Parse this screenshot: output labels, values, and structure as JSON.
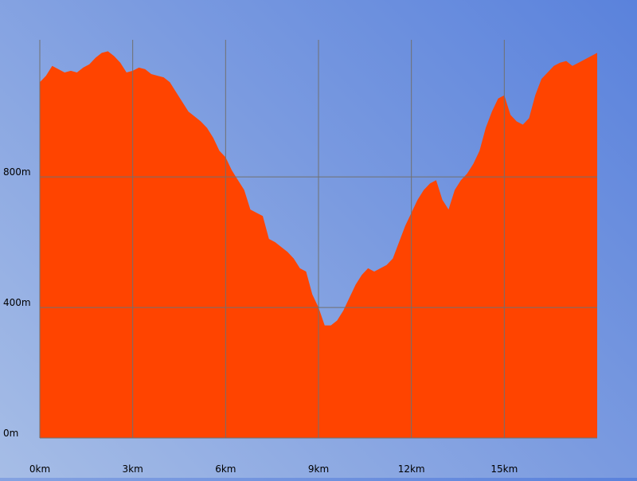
{
  "chart_data": {
    "type": "area",
    "title": "",
    "xlabel": "",
    "ylabel": "",
    "x_unit": "km",
    "y_unit": "m",
    "xlim": [
      0,
      18
    ],
    "ylim": [
      0,
      1220
    ],
    "x_ticks": [
      0,
      3,
      6,
      9,
      12,
      15
    ],
    "x_tick_labels": [
      "0km",
      "3km",
      "6km",
      "9km",
      "12km",
      "15km"
    ],
    "y_ticks": [
      0,
      400,
      800
    ],
    "y_tick_labels": [
      "0m",
      "400m",
      "800m"
    ],
    "grid": true,
    "colors": {
      "fill": "#ff4400",
      "grid": "#707070"
    },
    "series": [
      {
        "x": [
          0,
          0.2,
          0.4,
          0.6,
          0.8,
          1.0,
          1.2,
          1.4,
          1.6,
          1.8,
          2.0,
          2.2,
          2.4,
          2.6,
          2.8,
          3.0,
          3.2,
          3.4,
          3.6,
          3.8,
          4.0,
          4.2,
          4.4,
          4.6,
          4.8,
          5.0,
          5.2,
          5.4,
          5.6,
          5.8,
          6.0,
          6.2,
          6.4,
          6.6,
          6.8,
          7.0,
          7.2,
          7.4,
          7.6,
          7.8,
          8.0,
          8.2,
          8.4,
          8.6,
          8.8,
          9.0,
          9.2,
          9.4,
          9.6,
          9.8,
          10.0,
          10.2,
          10.4,
          10.6,
          10.8,
          11.0,
          11.2,
          11.4,
          11.6,
          11.8,
          12.0,
          12.2,
          12.4,
          12.6,
          12.8,
          13.0,
          13.2,
          13.4,
          13.6,
          13.8,
          14.0,
          14.2,
          14.4,
          14.6,
          14.8,
          15.0,
          15.2,
          15.4,
          15.6,
          15.8,
          16.0,
          16.2,
          16.4,
          16.6,
          16.8,
          17.0,
          17.2,
          17.4,
          17.6,
          17.8,
          18.0
        ],
        "y": [
          1090,
          1110,
          1140,
          1130,
          1120,
          1125,
          1120,
          1135,
          1145,
          1165,
          1180,
          1185,
          1170,
          1150,
          1120,
          1125,
          1135,
          1130,
          1115,
          1110,
          1105,
          1090,
          1060,
          1030,
          1000,
          985,
          970,
          950,
          920,
          880,
          860,
          820,
          790,
          760,
          700,
          690,
          680,
          610,
          600,
          585,
          570,
          550,
          520,
          510,
          440,
          400,
          345,
          345,
          360,
          390,
          430,
          470,
          500,
          520,
          510,
          520,
          530,
          550,
          600,
          650,
          690,
          730,
          760,
          780,
          790,
          730,
          700,
          760,
          790,
          810,
          840,
          880,
          950,
          1000,
          1040,
          1050,
          990,
          970,
          960,
          980,
          1050,
          1100,
          1120,
          1140,
          1150,
          1155,
          1140,
          1150,
          1160,
          1170,
          1180
        ]
      }
    ]
  }
}
